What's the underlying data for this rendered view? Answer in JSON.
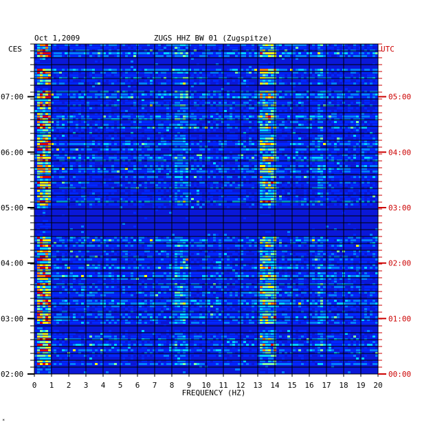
{
  "chart_data": {
    "type": "heatmap",
    "title": "ZUGS HHZ BW 01 (Zugspitze)",
    "date": "Oct 1,2009",
    "left_tz": "CES",
    "right_tz": "UTC",
    "xlabel": "FREQUENCY (HZ)",
    "x_ticks": [
      "0",
      "1",
      "2",
      "3",
      "4",
      "5",
      "6",
      "7",
      "8",
      "9",
      "10",
      "11",
      "12",
      "13",
      "14",
      "15",
      "16",
      "17",
      "18",
      "19",
      "20"
    ],
    "xlim": [
      0,
      20
    ],
    "y_ticks_left": [
      "02:00",
      "03:00",
      "04:00",
      "05:00",
      "06:00",
      "07:00"
    ],
    "y_ticks_right": [
      "00:00",
      "01:00",
      "02:00",
      "03:00",
      "04:00",
      "05:00"
    ],
    "ylim_hours_local": [
      2.0,
      7.95
    ],
    "colormap": [
      "#00008c",
      "#0000c8",
      "#0028ff",
      "#0080ff",
      "#00d0ff",
      "#80ffa0",
      "#ffff00",
      "#ff8000",
      "#e00000"
    ],
    "colors": {
      "grid": "#000000",
      "right_axis": "#cc0000",
      "background_base": "#0a18d8"
    },
    "features": [
      {
        "name": "low-frequency band",
        "x_range_hz": [
          0.1,
          1.0
        ],
        "intensity": "high"
      },
      {
        "name": "13.5 Hz band",
        "x_range_hz": [
          13.1,
          14.0
        ],
        "intensity": "medium-high"
      },
      {
        "name": "8.5 Hz band",
        "x_range_hz": [
          8.2,
          8.9
        ],
        "intensity": "low"
      },
      {
        "name": "16.7 Hz band",
        "x_range_hz": [
          16.5,
          16.8
        ],
        "intensity": "low"
      }
    ],
    "footnote": "*"
  }
}
